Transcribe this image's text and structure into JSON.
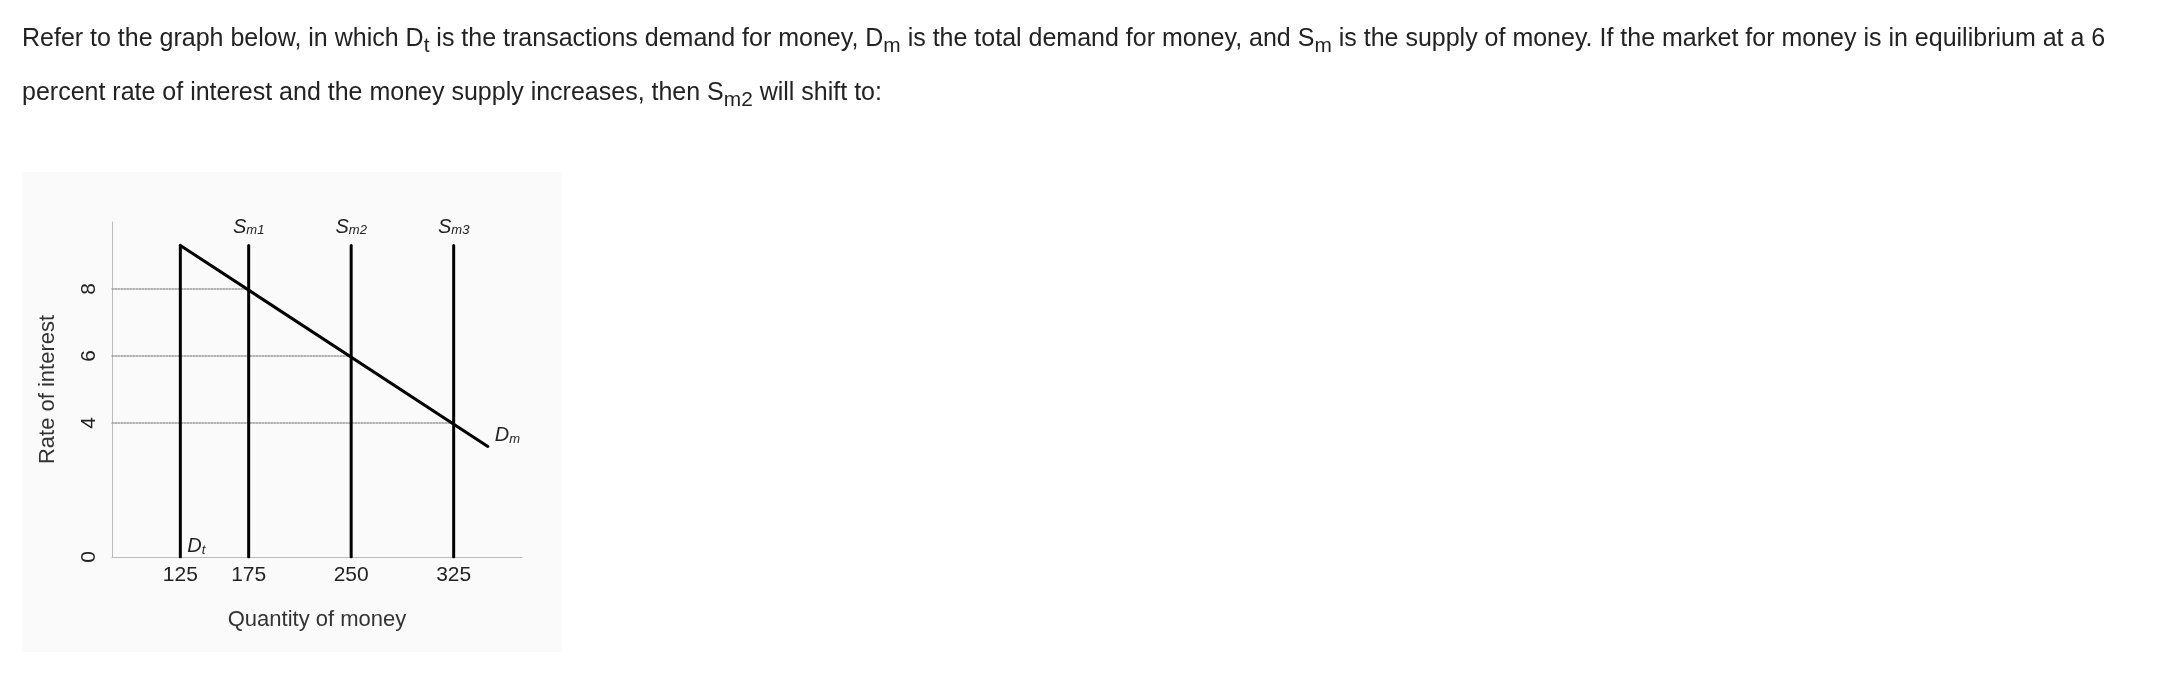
{
  "chart_data": {
    "type": "line",
    "title": "Refer to the graph below, in which D$_{t}$ is the transactions demand for money, D$_{m}$ is the total demand for money, and S$_{m}$ is the supply of money. If the market for money is in equilibrium at a 6 percent rate of interest and the money supply increases, then S$_{m2}$ will shift to:",
    "xlabel": "Quantity of money",
    "ylabel": "Rate of interest",
    "xlim": [
      75,
      375
    ],
    "xticks": [
      125,
      175,
      250,
      325
    ],
    "ylim": [
      0,
      10
    ],
    "yticks": [
      0,
      4,
      6,
      8
    ],
    "grid": false,
    "legend": false,
    "marker": "none",
    "line_style": "solid",
    "series": [
      {
        "name": "D$_{t}$",
        "color": "#000000",
        "x": [
          125,
          125
        ],
        "values": [
          9.3,
          0
        ]
      },
      {
        "name": "S$_{m1}$",
        "color": "#000000",
        "x": [
          175,
          175
        ],
        "values": [
          0,
          9.3
        ]
      },
      {
        "name": "S$_{m2}$",
        "color": "#000000",
        "x": [
          250,
          250
        ],
        "values": [
          0,
          9.3
        ]
      },
      {
        "name": "S$_{m3}$",
        "color": "#000000",
        "x": [
          325,
          325
        ],
        "values": [
          0,
          9.3
        ]
      },
      {
        "name": "D$_{m}$",
        "color": "#000000",
        "x": [
          125,
          350
        ],
        "values": [
          9.3,
          3.3
        ]
      },
      {
        "color": "#999999",
        "line_style": "dotted",
        "x": [
          75,
          175
        ],
        "values": [
          8,
          8
        ]
      },
      {
        "color": "#999999",
        "line_style": "dotted",
        "x": [
          75,
          250
        ],
        "values": [
          6,
          6
        ]
      },
      {
        "color": "#999999",
        "line_style": "dotted",
        "x": [
          75,
          325
        ],
        "values": [
          4,
          4
        ]
      }
    ]
  }
}
